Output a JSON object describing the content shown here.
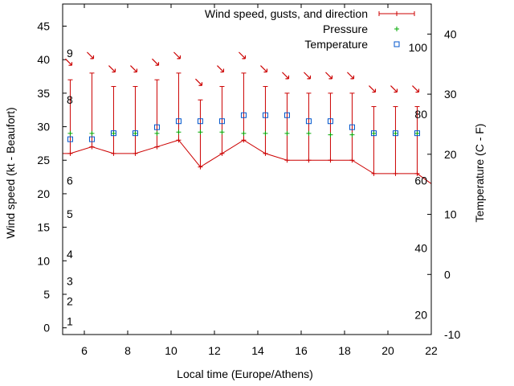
{
  "chart_data": {
    "type": "line",
    "title": "",
    "xlabel": "Local time (Europe/Athens)",
    "ylabel": "Wind speed (kt - Beaufort)",
    "y2label": "Temperature (C - F)",
    "xlim": [
      5,
      22
    ],
    "ylim": [
      -1,
      48.3
    ],
    "y2lim": [
      -10,
      45
    ],
    "x_ticks": [
      "6",
      "8",
      "10",
      "12",
      "14",
      "16",
      "18",
      "20",
      "22"
    ],
    "y_ticks": [
      "0",
      "5",
      "10",
      "15",
      "20",
      "25",
      "30",
      "35",
      "40",
      "45"
    ],
    "y2_ticks": [
      "-10",
      "0",
      "10",
      "20",
      "30",
      "40"
    ],
    "beaufort_labels": [
      {
        "text": "1",
        "y": 1
      },
      {
        "text": "2",
        "y": 4
      },
      {
        "text": "3",
        "y": 7
      },
      {
        "text": "4",
        "y": 11
      },
      {
        "text": "5",
        "y": 17
      },
      {
        "text": "6",
        "y": 22
      },
      {
        "text": "8",
        "y": 34
      },
      {
        "text": "9",
        "y": 41
      }
    ],
    "fahrenheit_labels": [
      {
        "text": "20",
        "y2": -6.7
      },
      {
        "text": "40",
        "y2": 4.4
      },
      {
        "text": "60",
        "y2": 15.6
      },
      {
        "text": "80",
        "y2": 26.7
      },
      {
        "text": "100",
        "y2": 37.8
      }
    ],
    "legend_position": "top-right",
    "series": [
      {
        "name": "Wind speed, gusts, and direction",
        "color": "#cc0000",
        "x": [
          5.35,
          6.35,
          7.35,
          8.35,
          9.35,
          10.35,
          11.35,
          12.35,
          13.35,
          14.35,
          15.35,
          16.35,
          17.35,
          18.35,
          19.35,
          20.35,
          21.35
        ],
        "values": [
          26,
          27,
          26,
          26,
          27,
          28,
          24,
          26,
          28,
          26,
          25,
          25,
          25,
          25,
          23,
          23,
          23
        ],
        "gusts": [
          37,
          38,
          36,
          36,
          37,
          38,
          34,
          36,
          38,
          36,
          35,
          35,
          35,
          35,
          33,
          33,
          33
        ],
        "direction_deg": [
          315,
          315,
          315,
          315,
          315,
          315,
          315,
          315,
          315,
          315,
          315,
          315,
          315,
          315,
          315,
          315,
          315
        ]
      },
      {
        "name": "Pressure",
        "color": "#00aa00",
        "x": [
          5.35,
          6.35,
          7.35,
          8.35,
          9.35,
          10.35,
          11.35,
          12.35,
          13.35,
          14.35,
          15.35,
          16.35,
          17.35,
          18.35,
          19.35,
          20.35,
          21.35
        ],
        "values": [
          29,
          29,
          29,
          29,
          29,
          29.2,
          29.2,
          29.2,
          29,
          29,
          29,
          29,
          28.8,
          28.8,
          29,
          29,
          29
        ]
      },
      {
        "name": "Temperature",
        "color": "#0055cc",
        "x": [
          5.35,
          6.35,
          7.35,
          8.35,
          9.35,
          10.35,
          11.35,
          12.35,
          13.35,
          14.35,
          15.35,
          16.35,
          17.35,
          18.35,
          19.35,
          20.35,
          21.35
        ],
        "values": [
          22.5,
          22.5,
          23.5,
          23.5,
          24.5,
          25.5,
          25.5,
          25.5,
          26.5,
          26.5,
          26.5,
          25.5,
          25.5,
          24.5,
          23.5,
          23.5,
          23.5
        ]
      }
    ]
  }
}
